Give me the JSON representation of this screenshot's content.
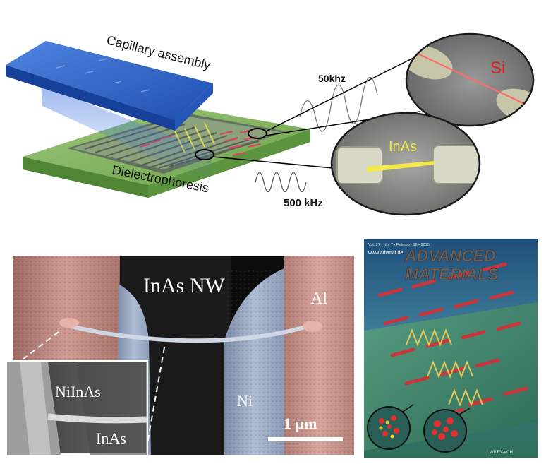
{
  "schematic": {
    "capillary_label": "Capillary assembly",
    "dielectro_label": "Dielectrophoresis",
    "freq_top": "50khz",
    "freq_bottom": "500 kHz",
    "inset_si_label": "Si",
    "inset_inas_label": "InAs"
  },
  "sem": {
    "title": "InAs NW",
    "al_label": "Al",
    "ni_label": "Ni",
    "scale_label": "1 µm",
    "inset_niinas_label": "NiInAs",
    "inset_inas_label": "InAs"
  },
  "cover": {
    "top_line": "Vol. 27 • No. 7 • February 18 • 2015",
    "website": "www.advmat.de",
    "title_line1": "ADVANCED",
    "title_line2": "MATERIALS",
    "publisher": "WILEY-VCH"
  },
  "colors": {
    "capillary_blue": "#2f63c9",
    "substrate_green": "#7fb35e",
    "si_red": "#e02020",
    "inas_yellow": "#f4e84a",
    "al_pink": "#c99088",
    "ni_blue": "#9fb0c8"
  }
}
